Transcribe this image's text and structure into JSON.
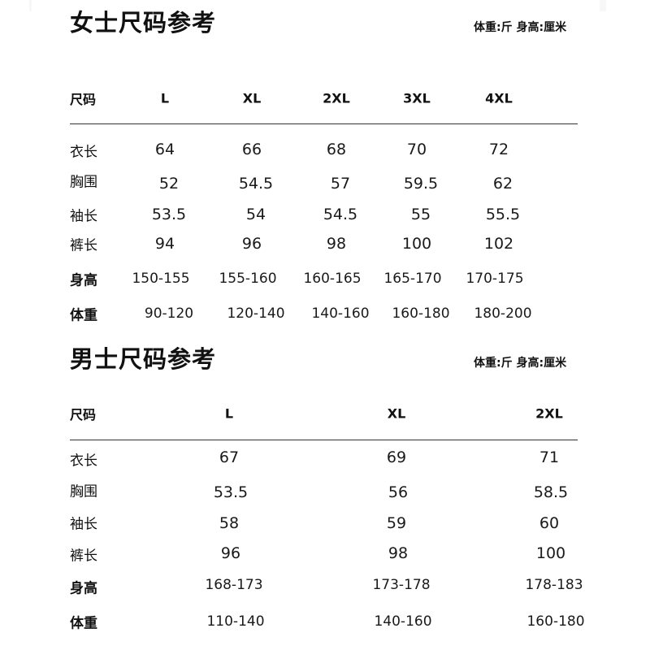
{
  "women": {
    "title": "女士尺码参考",
    "units": "体重:斤  身高:厘米",
    "header_label": "尺码",
    "sizes": [
      "L",
      "XL",
      "2XL",
      "3XL",
      "4XL"
    ],
    "rows": [
      {
        "label": "衣长",
        "values": [
          "64",
          "66",
          "68",
          "70",
          "72"
        ]
      },
      {
        "label": "胸围",
        "values": [
          "52",
          "54.5",
          "57",
          "59.5",
          "62"
        ]
      },
      {
        "label": "袖长",
        "values": [
          "53.5",
          "54",
          "54.5",
          "55",
          "55.5"
        ]
      },
      {
        "label": "裤长",
        "values": [
          "94",
          "96",
          "98",
          "100",
          "102"
        ]
      },
      {
        "label": "身高",
        "values": [
          "150-155",
          "155-160",
          "160-165",
          "165-170",
          "170-175"
        ]
      },
      {
        "label": "体重",
        "values": [
          "90-120",
          "120-140",
          "140-160",
          "160-180",
          "180-200"
        ]
      }
    ]
  },
  "men": {
    "title": "男士尺码参考",
    "units": "体重:斤  身高:厘米",
    "header_label": "尺码",
    "sizes": [
      "L",
      "XL",
      "2XL"
    ],
    "rows": [
      {
        "label": "衣长",
        "values": [
          "67",
          "69",
          "71"
        ]
      },
      {
        "label": "胸围",
        "values": [
          "53.5",
          "56",
          "58.5"
        ]
      },
      {
        "label": "袖长",
        "values": [
          "58",
          "59",
          "60"
        ]
      },
      {
        "label": "裤长",
        "values": [
          "96",
          "98",
          "100"
        ]
      },
      {
        "label": "身高",
        "values": [
          "168-173",
          "173-178",
          "178-183"
        ]
      },
      {
        "label": "体重",
        "values": [
          "110-140",
          "140-160",
          "160-180"
        ]
      }
    ]
  }
}
